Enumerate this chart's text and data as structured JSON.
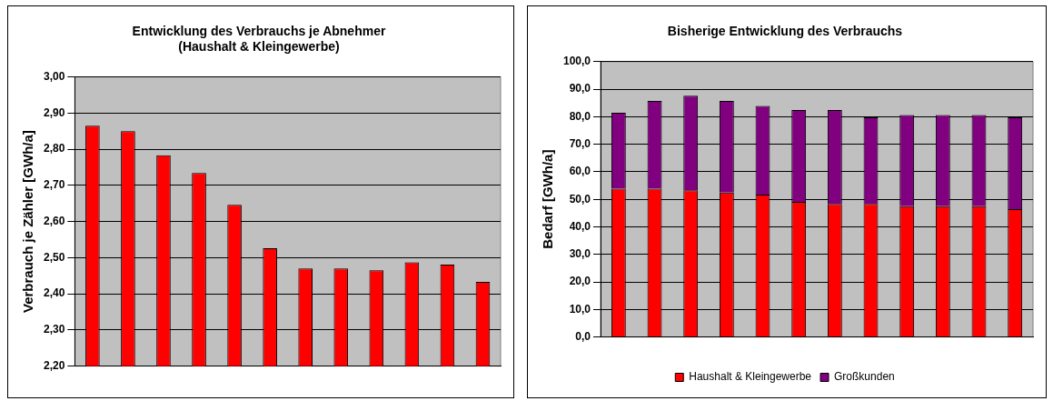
{
  "chart_data": [
    {
      "type": "bar",
      "title": "Entwicklung des Verbrauchs je Abnehmer\n(Haushalt & Kleingewerbe)",
      "ylabel": "Verbrauch je Zähler [GWh/a]",
      "categories": [
        null,
        null,
        null,
        null,
        null,
        null,
        null,
        null,
        null,
        null,
        null,
        null
      ],
      "values": [
        2.865,
        2.85,
        2.783,
        2.734,
        2.646,
        2.526,
        2.47,
        2.47,
        2.465,
        2.487,
        2.481,
        2.433
      ],
      "color": "#ff0000",
      "ylim": [
        2.2,
        3.0
      ],
      "yticks": [
        {
          "value": 2.2,
          "label": "2,20"
        },
        {
          "value": 2.3,
          "label": "2,30"
        },
        {
          "value": 2.4,
          "label": "2,40"
        },
        {
          "value": 2.5,
          "label": "2,50"
        },
        {
          "value": 2.6,
          "label": "2,60"
        },
        {
          "value": 2.7,
          "label": "2,70"
        },
        {
          "value": 2.8,
          "label": "2,80"
        },
        {
          "value": 2.9,
          "label": "2,90"
        },
        {
          "value": 3.0,
          "label": "3,00"
        }
      ],
      "grid": "y"
    },
    {
      "type": "bar",
      "title": "Bisherige Entwicklung des Verbrauchs",
      "ylabel": "Bedarf [GWh/a]",
      "categories": [
        null,
        null,
        null,
        null,
        null,
        null,
        null,
        null,
        null,
        null,
        null,
        null
      ],
      "stacked": true,
      "series": [
        {
          "name": "Haushalt & Kleingewerbe",
          "color": "#ff0000",
          "values": [
            53.9,
            53.9,
            53.3,
            52.5,
            51.7,
            49.1,
            48.3,
            48.3,
            47.5,
            47.5,
            47.5,
            46.4
          ]
        },
        {
          "name": "Großkunden",
          "color": "#800080",
          "values": [
            27.5,
            31.8,
            34.3,
            33.2,
            32.2,
            33.3,
            34.1,
            31.5,
            33.1,
            33.1,
            33.1,
            33.4
          ]
        }
      ],
      "ylim": [
        0,
        100
      ],
      "yticks": [
        {
          "value": 0,
          "label": "0,0"
        },
        {
          "value": 10,
          "label": "10,0"
        },
        {
          "value": 20,
          "label": "20,0"
        },
        {
          "value": 30,
          "label": "30,0"
        },
        {
          "value": 40,
          "label": "40,0"
        },
        {
          "value": 50,
          "label": "50,0"
        },
        {
          "value": 60,
          "label": "60,0"
        },
        {
          "value": 70,
          "label": "70,0"
        },
        {
          "value": 80,
          "label": "80,0"
        },
        {
          "value": 90,
          "label": "90,0"
        },
        {
          "value": 100,
          "label": "100,0"
        }
      ],
      "grid": "y",
      "legend": "bottom"
    }
  ]
}
